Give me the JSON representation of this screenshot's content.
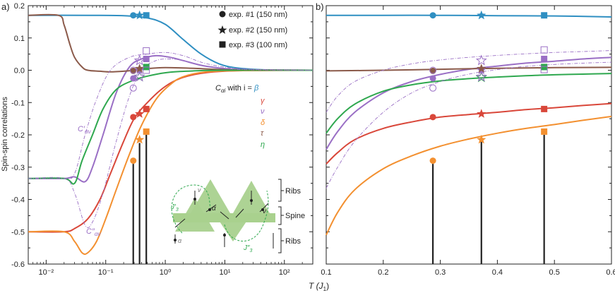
{
  "figure": {
    "panel_a_label": "a)",
    "panel_b_label": "b)",
    "ylabel": "Spin-spin correlations",
    "xlabel_main": "T (J",
    "xlabel_sub": "1",
    "xlabel_close": ")",
    "legend_experiments": [
      {
        "marker": "circle",
        "label": "exp. #1 (150 nm)"
      },
      {
        "marker": "star",
        "label": "exp. #2 (150 nm)"
      },
      {
        "marker": "square",
        "label": "exp. #3 (100 nm)"
      }
    ],
    "correlation_legend": {
      "title": "C",
      "title_sub": "αi",
      "title_rest": " with i = ",
      "entries": [
        {
          "symbol": "β",
          "color": "#2f8fc2"
        },
        {
          "symbol": "γ",
          "color": "#d9473a"
        },
        {
          "symbol": "ν",
          "color": "#9a6fc5"
        },
        {
          "symbol": "δ",
          "color": "#f39030"
        },
        {
          "symbol": "τ",
          "color": "#8b5a4a"
        },
        {
          "symbol": "η",
          "color": "#2fa84f"
        }
      ]
    },
    "annotations": {
      "c_prime": "C′",
      "c_prime_sub": "αν",
      "c_dprime": "C″",
      "c_dprime_sub": "αν"
    },
    "inset": {
      "label_ribs_top": "Ribs",
      "label_spine": "Spine",
      "label_ribs_bottom": "Ribs",
      "label_j3p": "J′",
      "label_j3p_sub": "3",
      "label_j3pp": "J″",
      "label_j3pp_sub": "3",
      "label_alpha": "α",
      "label_nu": "ν",
      "colors": {
        "triangle": "#a9d18e",
        "spine": "#a9d18e",
        "dashed": "#2fa84f"
      }
    }
  },
  "chart_data": [
    {
      "panel": "a",
      "type": "line",
      "xscale": "log",
      "xlim": [
        0.005,
        300
      ],
      "ylim": [
        -0.6,
        0.2
      ],
      "xticks": [
        0.01,
        0.1,
        1,
        10,
        100
      ],
      "xtick_labels": [
        "10⁻²",
        "10⁻¹",
        "10⁰",
        "10¹",
        "10²"
      ],
      "yticks": [
        0.2,
        0.1,
        0.0,
        -0.1,
        -0.2,
        -0.3,
        -0.4,
        -0.5,
        -0.6
      ],
      "ytick_labels": [
        "0.2",
        "0.1",
        "0.0",
        "-0.1",
        "-0.2",
        "-0.3",
        "-0.4",
        "-0.5",
        "-0.6"
      ],
      "series": [
        {
          "name": "β",
          "color": "#2f8fc2",
          "x": [
            0.005,
            0.05,
            0.2,
            0.5,
            1,
            2,
            4,
            8,
            16,
            50,
            300
          ],
          "y": [
            0.17,
            0.17,
            0.169,
            0.162,
            0.142,
            0.095,
            0.05,
            0.02,
            0.007,
            0.001,
            0.0
          ]
        },
        {
          "name": "γ",
          "color": "#d9473a",
          "x": [
            0.005,
            0.02,
            0.03,
            0.05,
            0.08,
            0.12,
            0.2,
            0.3,
            0.5,
            1,
            2,
            5,
            20,
            300
          ],
          "y": [
            -0.5,
            -0.5,
            -0.49,
            -0.46,
            -0.4,
            -0.32,
            -0.22,
            -0.15,
            -0.1,
            -0.05,
            -0.022,
            -0.007,
            -0.001,
            0.0
          ]
        },
        {
          "name": "ν",
          "color": "#9a6fc5",
          "x": [
            0.005,
            0.02,
            0.03,
            0.045,
            0.06,
            0.09,
            0.15,
            0.25,
            0.4,
            0.7,
            1.2,
            2,
            5,
            20,
            300
          ],
          "y": [
            -0.335,
            -0.335,
            -0.33,
            -0.345,
            -0.3,
            -0.2,
            -0.07,
            0.01,
            0.035,
            0.045,
            0.04,
            0.03,
            0.012,
            0.002,
            0.0
          ]
        },
        {
          "name": "δ",
          "color": "#f39030",
          "x": [
            0.005,
            0.02,
            0.03,
            0.04,
            0.05,
            0.07,
            0.1,
            0.15,
            0.25,
            0.4,
            0.7,
            1.2,
            2,
            5,
            20,
            300
          ],
          "y": [
            -0.5,
            -0.5,
            -0.53,
            -0.565,
            -0.565,
            -0.53,
            -0.46,
            -0.37,
            -0.26,
            -0.17,
            -0.09,
            -0.045,
            -0.02,
            -0.005,
            -0.001,
            0.0
          ]
        },
        {
          "name": "τ",
          "color": "#8b5a4a",
          "x": [
            0.005,
            0.016,
            0.02,
            0.025,
            0.03,
            0.04,
            0.05,
            0.08,
            0.12,
            0.2,
            0.3,
            0.5,
            1,
            3,
            10,
            300
          ],
          "y": [
            0.17,
            0.17,
            0.14,
            0.08,
            0.04,
            0.01,
            0.0,
            -0.003,
            -0.005,
            -0.003,
            0.0,
            0.005,
            0.008,
            0.006,
            0.002,
            0.0
          ]
        },
        {
          "name": "η",
          "color": "#2fa84f",
          "x": [
            0.005,
            0.02,
            0.03,
            0.04,
            0.06,
            0.09,
            0.15,
            0.3,
            0.6,
            1.2,
            3,
            10,
            300
          ],
          "y": [
            -0.335,
            -0.335,
            -0.35,
            -0.28,
            -0.2,
            -0.12,
            -0.06,
            -0.03,
            -0.015,
            -0.006,
            -0.002,
            0.0,
            0.0
          ]
        },
        {
          "name": "C′αν",
          "color": "#9a6fc5",
          "dashed": true,
          "x": [
            0.005,
            0.02,
            0.03,
            0.045,
            0.07,
            0.12,
            0.25,
            0.5,
            1,
            2,
            5,
            20,
            300
          ],
          "y": [
            -0.335,
            -0.335,
            -0.32,
            -0.2,
            -0.09,
            0.0,
            0.04,
            0.05,
            0.055,
            0.045,
            0.02,
            0.004,
            0.0
          ]
        },
        {
          "name": "C″αν",
          "color": "#9a6fc5",
          "dashed": true,
          "x": [
            0.005,
            0.02,
            0.03,
            0.045,
            0.06,
            0.09,
            0.15,
            0.25,
            0.4,
            0.7,
            1.2,
            2,
            5,
            20,
            300
          ],
          "y": [
            -0.335,
            -0.335,
            -0.38,
            -0.48,
            -0.47,
            -0.38,
            -0.22,
            -0.08,
            0.0,
            0.03,
            0.035,
            0.03,
            0.012,
            0.002,
            0.0
          ]
        }
      ],
      "experiments": {
        "exp1": {
          "x": 0.29,
          "markers": [
            {
              "series": "β",
              "y": 0.17,
              "fill": true
            },
            {
              "series": "γ",
              "y": -0.145,
              "fill": true
            },
            {
              "series": "ν",
              "y": -0.025,
              "fill": true
            },
            {
              "series": "δ",
              "y": -0.28,
              "fill": true
            },
            {
              "series": "τ",
              "y": -0.002,
              "fill": true
            },
            {
              "series": "C′αν",
              "y": 0.0,
              "fill": false
            },
            {
              "series": "C″αν",
              "y": -0.055,
              "fill": false
            }
          ]
        },
        "exp2": {
          "x": 0.37,
          "markers": [
            {
              "series": "β",
              "y": 0.17,
              "fill": true
            },
            {
              "series": "γ",
              "y": -0.135,
              "fill": true
            },
            {
              "series": "ν",
              "y": 0.0,
              "fill": true
            },
            {
              "series": "δ",
              "y": -0.215,
              "fill": true
            },
            {
              "series": "τ",
              "y": 0.005,
              "fill": true
            },
            {
              "series": "η",
              "y": -0.02,
              "fill": false
            },
            {
              "series": "C′αν",
              "y": 0.03,
              "fill": false
            },
            {
              "series": "C″αν",
              "y": -0.02,
              "fill": false
            }
          ]
        },
        "exp3": {
          "x": 0.48,
          "markers": [
            {
              "series": "β",
              "y": 0.17,
              "fill": true
            },
            {
              "series": "γ",
              "y": -0.12,
              "fill": true
            },
            {
              "series": "ν",
              "y": 0.035,
              "fill": true
            },
            {
              "series": "δ",
              "y": -0.19,
              "fill": true
            },
            {
              "series": "η",
              "y": 0.01,
              "fill": true
            },
            {
              "series": "C′αν",
              "y": 0.06,
              "fill": false
            },
            {
              "series": "C″αν",
              "y": 0.0,
              "fill": false
            }
          ]
        }
      },
      "bars": [
        {
          "x": 0.29,
          "top": -0.29
        },
        {
          "x": 0.37,
          "top": -0.225
        },
        {
          "x": 0.48,
          "top": -0.2
        }
      ]
    },
    {
      "panel": "b",
      "type": "line",
      "xscale": "linear",
      "xlim": [
        0.1,
        0.6
      ],
      "ylim": [
        -0.6,
        0.2
      ],
      "xticks": [
        0.1,
        0.2,
        0.3,
        0.4,
        0.5,
        0.6
      ],
      "xtick_labels": [
        "0.1",
        "0.2",
        "0.3",
        "0.4",
        "0.5",
        "0.6"
      ],
      "series": [
        {
          "name": "β",
          "color": "#2f8fc2",
          "x": [
            0.1,
            0.2,
            0.3,
            0.4,
            0.5,
            0.6
          ],
          "y": [
            0.17,
            0.17,
            0.17,
            0.169,
            0.168,
            0.165
          ]
        },
        {
          "name": "γ",
          "color": "#d9473a",
          "x": [
            0.1,
            0.12,
            0.15,
            0.2,
            0.25,
            0.3,
            0.35,
            0.4,
            0.45,
            0.5,
            0.55,
            0.6
          ],
          "y": [
            -0.29,
            -0.255,
            -0.215,
            -0.18,
            -0.16,
            -0.145,
            -0.137,
            -0.13,
            -0.122,
            -0.116,
            -0.109,
            -0.103
          ]
        },
        {
          "name": "ν",
          "color": "#9a6fc5",
          "x": [
            0.1,
            0.12,
            0.15,
            0.2,
            0.25,
            0.3,
            0.35,
            0.4,
            0.45,
            0.5,
            0.55,
            0.6
          ],
          "y": [
            -0.245,
            -0.19,
            -0.13,
            -0.07,
            -0.035,
            -0.013,
            0.003,
            0.013,
            0.022,
            0.028,
            0.035,
            0.04
          ]
        },
        {
          "name": "δ",
          "color": "#f39030",
          "x": [
            0.1,
            0.12,
            0.15,
            0.2,
            0.25,
            0.3,
            0.35,
            0.4,
            0.45,
            0.5,
            0.55,
            0.6
          ],
          "y": [
            -0.51,
            -0.44,
            -0.37,
            -0.305,
            -0.265,
            -0.235,
            -0.213,
            -0.195,
            -0.18,
            -0.168,
            -0.155,
            -0.143
          ]
        },
        {
          "name": "τ",
          "color": "#8b5a4a",
          "x": [
            0.1,
            0.2,
            0.3,
            0.4,
            0.5,
            0.6
          ],
          "y": [
            -0.002,
            0.0,
            0.003,
            0.006,
            0.008,
            0.009
          ]
        },
        {
          "name": "η",
          "color": "#2fa84f",
          "x": [
            0.1,
            0.12,
            0.15,
            0.2,
            0.25,
            0.3,
            0.35,
            0.4,
            0.45,
            0.5,
            0.55,
            0.6
          ],
          "y": [
            -0.195,
            -0.15,
            -0.105,
            -0.065,
            -0.045,
            -0.033,
            -0.026,
            -0.021,
            -0.017,
            -0.014,
            -0.012,
            -0.01
          ]
        },
        {
          "name": "C′αν",
          "color": "#9a6fc5",
          "dashed": true,
          "x": [
            0.1,
            0.12,
            0.15,
            0.2,
            0.25,
            0.3,
            0.35,
            0.4,
            0.45,
            0.5,
            0.55,
            0.6
          ],
          "y": [
            -0.13,
            -0.08,
            -0.035,
            0.0,
            0.02,
            0.032,
            0.04,
            0.046,
            0.051,
            0.055,
            0.058,
            0.061
          ]
        },
        {
          "name": "C″αν",
          "color": "#9a6fc5",
          "dashed": true,
          "x": [
            0.1,
            0.12,
            0.15,
            0.2,
            0.25,
            0.3,
            0.35,
            0.4,
            0.45,
            0.5,
            0.55,
            0.6
          ],
          "y": [
            -0.365,
            -0.3,
            -0.22,
            -0.13,
            -0.07,
            -0.035,
            -0.012,
            0.002,
            0.012,
            0.018,
            0.022,
            0.025
          ]
        }
      ],
      "experiments": {
        "exp1": {
          "x": 0.287,
          "markers": [
            {
              "series": "β",
              "y": 0.17,
              "fill": true
            },
            {
              "series": "γ",
              "y": -0.145,
              "fill": true
            },
            {
              "series": "ν",
              "y": -0.025,
              "fill": true
            },
            {
              "series": "δ",
              "y": -0.28,
              "fill": true
            },
            {
              "series": "τ",
              "y": -0.002,
              "fill": true
            },
            {
              "series": "C′αν",
              "y": 0.0,
              "fill": false
            },
            {
              "series": "C″αν",
              "y": -0.055,
              "fill": false
            }
          ]
        },
        "exp2": {
          "x": 0.372,
          "markers": [
            {
              "series": "β",
              "y": 0.17,
              "fill": true
            },
            {
              "series": "γ",
              "y": -0.135,
              "fill": true
            },
            {
              "series": "ν",
              "y": 0.0,
              "fill": true
            },
            {
              "series": "δ",
              "y": -0.215,
              "fill": true
            },
            {
              "series": "τ",
              "y": 0.005,
              "fill": true
            },
            {
              "series": "η",
              "y": -0.022,
              "fill": false
            },
            {
              "series": "C′αν",
              "y": 0.03,
              "fill": false
            },
            {
              "series": "C″αν",
              "y": -0.02,
              "fill": false
            }
          ]
        },
        "exp3": {
          "x": 0.482,
          "markers": [
            {
              "series": "β",
              "y": 0.17,
              "fill": true
            },
            {
              "series": "γ",
              "y": -0.12,
              "fill": true
            },
            {
              "series": "ν",
              "y": 0.035,
              "fill": true
            },
            {
              "series": "δ",
              "y": -0.19,
              "fill": true
            },
            {
              "series": "η",
              "y": 0.01,
              "fill": true
            },
            {
              "series": "C′αν",
              "y": 0.063,
              "fill": false
            },
            {
              "series": "C″αν",
              "y": 0.002,
              "fill": false
            }
          ]
        }
      },
      "bars": [
        {
          "x": 0.287,
          "top": -0.29
        },
        {
          "x": 0.372,
          "top": -0.22
        },
        {
          "x": 0.482,
          "top": -0.2
        }
      ]
    }
  ]
}
